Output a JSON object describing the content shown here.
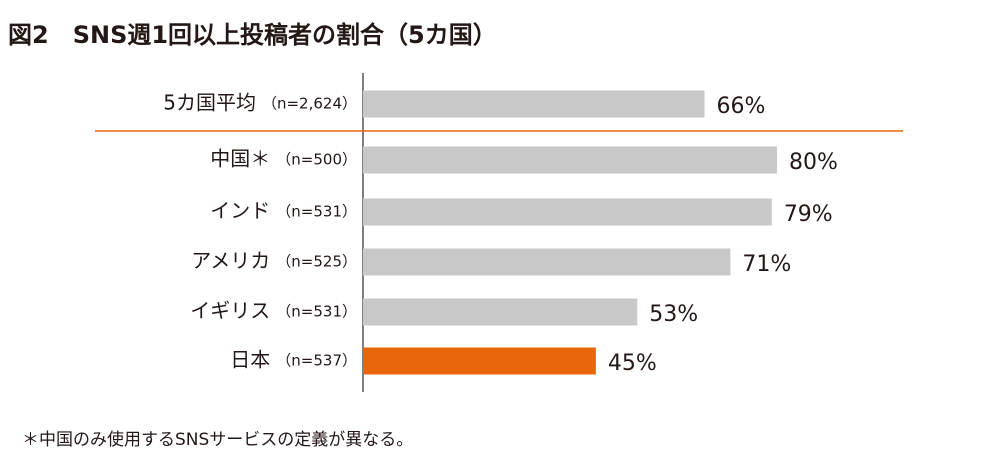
{
  "chart_data": {
    "type": "bar",
    "orientation": "horizontal",
    "title": "図2　SNS週1回以上投稿者の割合（5カ国）",
    "categories": [
      "5カ国平均",
      "中国＊",
      "インド",
      "アメリカ",
      "イギリス",
      "日本"
    ],
    "sample_sizes": [
      "（n=2,624）",
      "（n=500）",
      "（n=531）",
      "（n=525）",
      "（n=531）",
      "（n=537）"
    ],
    "values": [
      66,
      80,
      79,
      71,
      53,
      45
    ],
    "value_labels": [
      "66%",
      "80%",
      "79%",
      "71%",
      "53%",
      "45%"
    ],
    "colors": [
      "#c8c8c8",
      "#c8c8c8",
      "#c8c8c8",
      "#c8c8c8",
      "#c8c8c8",
      "#e8650a"
    ],
    "footnote": "＊中国のみ使用するSNSサービスの定義が異なる。"
  }
}
